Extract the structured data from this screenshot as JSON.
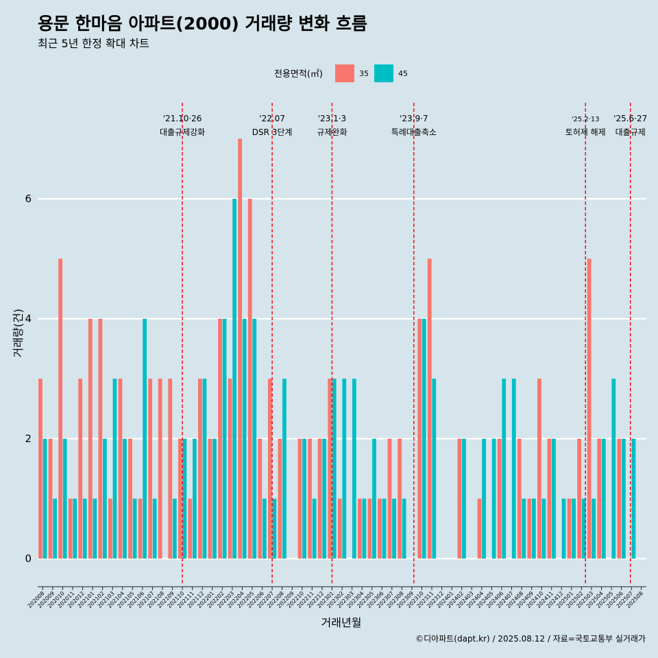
{
  "chart_data": {
    "type": "bar",
    "title": "용문 한마음 아파트(2000) 거래량 변화 흐름",
    "subtitle": "최근 5년 한정 확대 차트",
    "xlabel": "거래년월",
    "ylabel": "거래량(건)",
    "legend_title": "전용면적(㎡)",
    "legend_position": "top",
    "grid": true,
    "ylim": [
      -0.4,
      7.6
    ],
    "yticks": [
      0,
      2,
      4,
      6
    ],
    "categories": [
      "202008",
      "202009",
      "202010",
      "202011",
      "202012",
      "202101",
      "202102",
      "202103",
      "202104",
      "202105",
      "202106",
      "202107",
      "202108",
      "202109",
      "202110",
      "202111",
      "202112",
      "202201",
      "202202",
      "202203",
      "202204",
      "202205",
      "202206",
      "202207",
      "202208",
      "202209",
      "202210",
      "202211",
      "202212",
      "202301",
      "202302",
      "202303",
      "202304",
      "202305",
      "202306",
      "202307",
      "202308",
      "202309",
      "202310",
      "202311",
      "202312",
      "202401",
      "202402",
      "202403",
      "202404",
      "202405",
      "202406",
      "202407",
      "202408",
      "202409",
      "202410",
      "202411",
      "202412",
      "202501",
      "202502",
      "202503",
      "202504",
      "202505",
      "202506",
      "202507",
      "202508"
    ],
    "series": [
      {
        "name": "35",
        "color": "#f8766d",
        "values": [
          3,
          2,
          5,
          1,
          3,
          4,
          4,
          1,
          3,
          2,
          1,
          3,
          3,
          3,
          2,
          1,
          3,
          2,
          4,
          3,
          7,
          6,
          2,
          3,
          2,
          0,
          2,
          2,
          2,
          3,
          1,
          0,
          1,
          1,
          1,
          2,
          2,
          0,
          4,
          5,
          0,
          0,
          2,
          0,
          1,
          0,
          2,
          0,
          2,
          1,
          3,
          2,
          0,
          1,
          2,
          5,
          2,
          0,
          2,
          0,
          0
        ]
      },
      {
        "name": "45",
        "color": "#00bfc4",
        "values": [
          2,
          1,
          2,
          1,
          1,
          1,
          2,
          3,
          2,
          1,
          4,
          1,
          0,
          1,
          2,
          2,
          3,
          2,
          4,
          6,
          4,
          4,
          1,
          1,
          3,
          0,
          2,
          1,
          2,
          3,
          3,
          3,
          1,
          2,
          1,
          1,
          1,
          0,
          4,
          3,
          0,
          0,
          2,
          0,
          2,
          2,
          3,
          3,
          1,
          1,
          1,
          2,
          1,
          1,
          1,
          1,
          2,
          3,
          2,
          2,
          0
        ]
      }
    ],
    "annotations": [
      {
        "line1": "'21.10·26",
        "line2": "대출규제강화",
        "at": "202110",
        "offset": 0.0
      },
      {
        "line1": "'22.07",
        "line2": "DSR 3단계",
        "at": "202207",
        "offset": 0.0
      },
      {
        "line1": "'23.1·3",
        "line2": "규제완화",
        "at": "202301",
        "offset": 0.0
      },
      {
        "line1": "'23.9·7",
        "line2": "특례대출축소",
        "at": "202309",
        "offset": 0.2
      },
      {
        "line1": "'25.2·13",
        "line2": "토허제 해제",
        "at": "202502",
        "offset": 0.4
      },
      {
        "line1": "'25.6·27",
        "line2": "대출규제",
        "at": "202506",
        "offset": 0.9
      }
    ],
    "caption": "©디아파트(dapt.kr) / 2025.08.12 / 자료=국토교통부 실거래가"
  }
}
